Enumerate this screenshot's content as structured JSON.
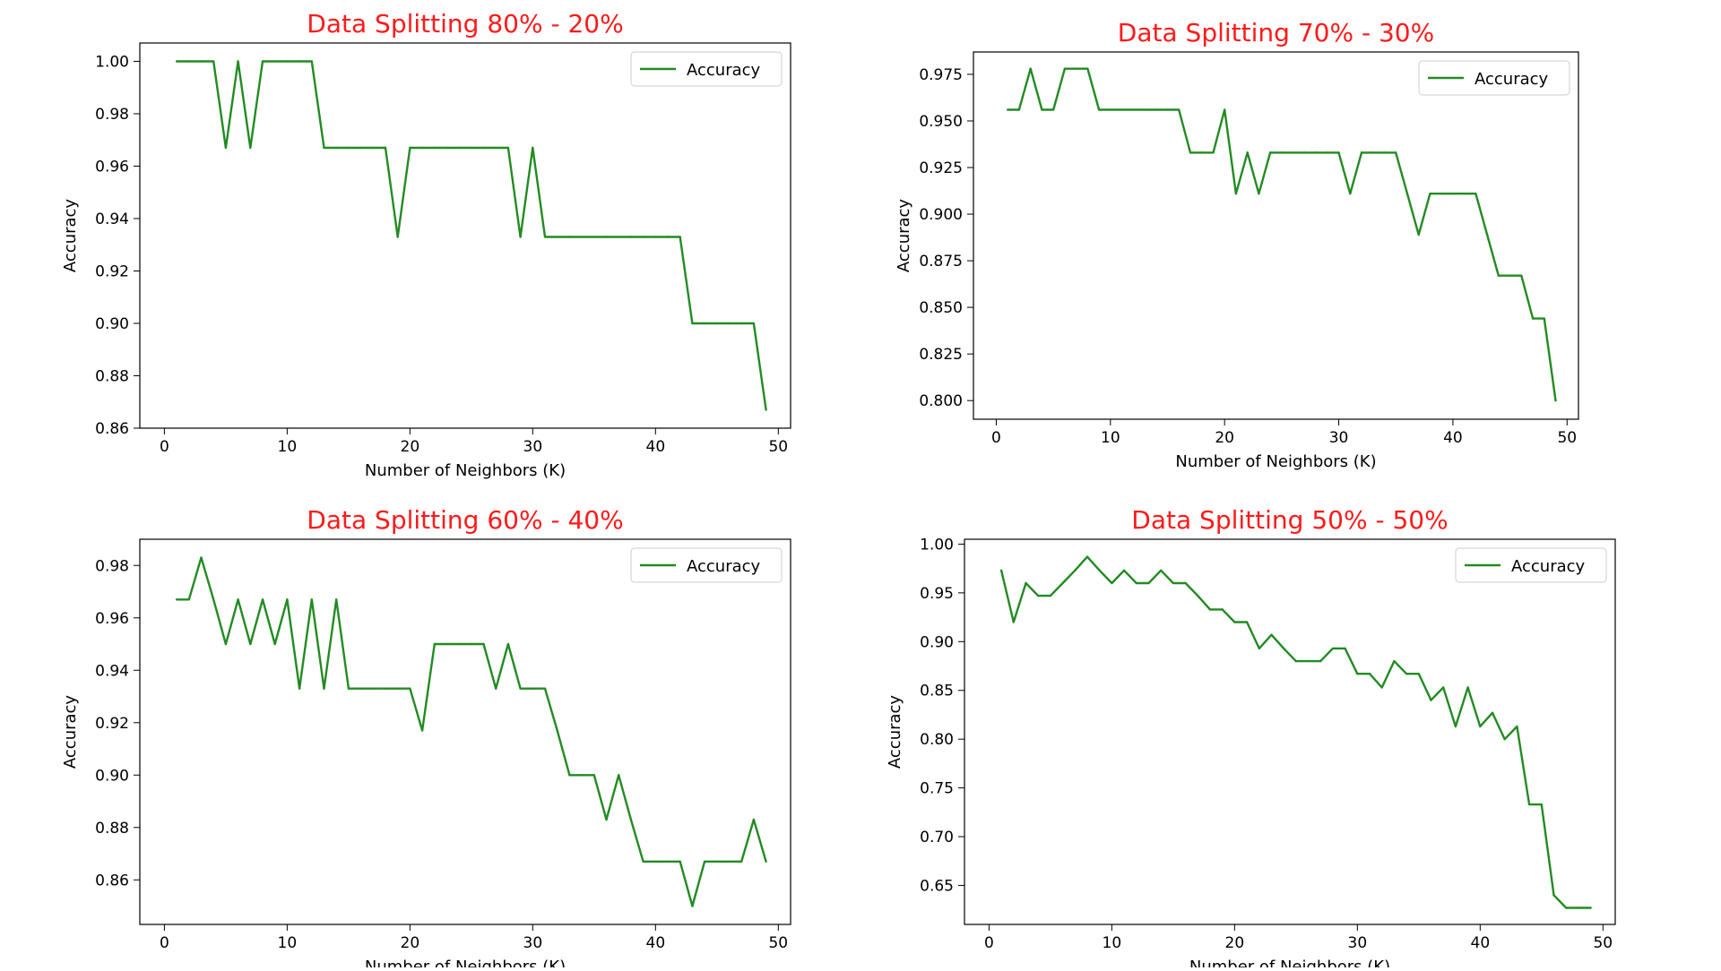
{
  "chart_data": [
    {
      "type": "line",
      "title": "Data Splitting 80% - 20%",
      "xlabel": "Number of Neighbors (K)",
      "ylabel": "Accuracy",
      "legend": "top-right",
      "xlim": [
        -2,
        51
      ],
      "ylim": [
        0.86,
        1.007
      ],
      "xticks": [
        0,
        10,
        20,
        30,
        40,
        50
      ],
      "yticks": [
        0.86,
        0.88,
        0.9,
        0.92,
        0.94,
        0.96,
        0.98,
        1.0
      ],
      "ytick_labels": [
        "0.86",
        "0.88",
        "0.90",
        "0.92",
        "0.94",
        "0.96",
        "0.98",
        "1.00"
      ],
      "series": [
        {
          "name": "Accuracy",
          "color": "#228b22",
          "x": [
            1,
            2,
            3,
            4,
            5,
            6,
            7,
            8,
            9,
            10,
            11,
            12,
            13,
            14,
            15,
            16,
            17,
            18,
            19,
            20,
            21,
            22,
            23,
            24,
            25,
            26,
            27,
            28,
            29,
            30,
            31,
            32,
            33,
            34,
            35,
            36,
            37,
            38,
            39,
            40,
            41,
            42,
            43,
            44,
            45,
            46,
            47,
            48,
            49
          ],
          "y": [
            1.0,
            1.0,
            1.0,
            1.0,
            0.967,
            1.0,
            0.967,
            1.0,
            1.0,
            1.0,
            1.0,
            1.0,
            0.967,
            0.967,
            0.967,
            0.967,
            0.967,
            0.967,
            0.933,
            0.967,
            0.967,
            0.967,
            0.967,
            0.967,
            0.967,
            0.967,
            0.967,
            0.967,
            0.933,
            0.967,
            0.933,
            0.933,
            0.933,
            0.933,
            0.933,
            0.933,
            0.933,
            0.933,
            0.933,
            0.933,
            0.933,
            0.933,
            0.9,
            0.9,
            0.9,
            0.9,
            0.9,
            0.9,
            0.867
          ]
        }
      ]
    },
    {
      "type": "line",
      "title": "Data Splitting 70% - 30%",
      "xlabel": "Number of Neighbors (K)",
      "ylabel": "Accuracy",
      "legend": "top-right",
      "xlim": [
        -2,
        51
      ],
      "ylim": [
        0.79,
        0.987
      ],
      "xticks": [
        0,
        10,
        20,
        30,
        40,
        50
      ],
      "yticks": [
        0.8,
        0.825,
        0.85,
        0.875,
        0.9,
        0.925,
        0.95,
        0.975
      ],
      "ytick_labels": [
        "0.800",
        "0.825",
        "0.850",
        "0.875",
        "0.900",
        "0.925",
        "0.950",
        "0.975"
      ],
      "series": [
        {
          "name": "Accuracy",
          "color": "#228b22",
          "x": [
            1,
            2,
            3,
            4,
            5,
            6,
            7,
            8,
            9,
            10,
            11,
            12,
            13,
            14,
            15,
            16,
            17,
            18,
            19,
            20,
            21,
            22,
            23,
            24,
            25,
            26,
            27,
            28,
            29,
            30,
            31,
            32,
            33,
            34,
            35,
            36,
            37,
            38,
            39,
            40,
            41,
            42,
            43,
            44,
            45,
            46,
            47,
            48,
            49
          ],
          "y": [
            0.956,
            0.956,
            0.978,
            0.956,
            0.956,
            0.978,
            0.978,
            0.978,
            0.956,
            0.956,
            0.956,
            0.956,
            0.956,
            0.956,
            0.956,
            0.956,
            0.933,
            0.933,
            0.933,
            0.956,
            0.911,
            0.933,
            0.911,
            0.933,
            0.933,
            0.933,
            0.933,
            0.933,
            0.933,
            0.933,
            0.911,
            0.933,
            0.933,
            0.933,
            0.933,
            0.911,
            0.889,
            0.911,
            0.911,
            0.911,
            0.911,
            0.911,
            0.889,
            0.867,
            0.867,
            0.867,
            0.844,
            0.844,
            0.8
          ]
        }
      ]
    },
    {
      "type": "line",
      "title": "Data Splitting 60% - 40%",
      "xlabel": "Number of Neighbors (K)",
      "ylabel": "Accuracy",
      "legend": "top-right",
      "xlim": [
        -2,
        51
      ],
      "ylim": [
        0.843,
        0.99
      ],
      "xticks": [
        0,
        10,
        20,
        30,
        40,
        50
      ],
      "yticks": [
        0.86,
        0.88,
        0.9,
        0.92,
        0.94,
        0.96,
        0.98
      ],
      "ytick_labels": [
        "0.86",
        "0.88",
        "0.90",
        "0.92",
        "0.94",
        "0.96",
        "0.98"
      ],
      "series": [
        {
          "name": "Accuracy",
          "color": "#228b22",
          "x": [
            1,
            2,
            3,
            4,
            5,
            6,
            7,
            8,
            9,
            10,
            11,
            12,
            13,
            14,
            15,
            16,
            17,
            18,
            19,
            20,
            21,
            22,
            23,
            24,
            25,
            26,
            27,
            28,
            29,
            30,
            31,
            32,
            33,
            34,
            35,
            36,
            37,
            38,
            39,
            40,
            41,
            42,
            43,
            44,
            45,
            46,
            47,
            48,
            49
          ],
          "y": [
            0.967,
            0.967,
            0.983,
            0.967,
            0.95,
            0.967,
            0.95,
            0.967,
            0.95,
            0.967,
            0.933,
            0.967,
            0.933,
            0.967,
            0.933,
            0.933,
            0.933,
            0.933,
            0.933,
            0.933,
            0.917,
            0.95,
            0.95,
            0.95,
            0.95,
            0.95,
            0.933,
            0.95,
            0.933,
            0.933,
            0.933,
            0.917,
            0.9,
            0.9,
            0.9,
            0.883,
            0.9,
            0.883,
            0.867,
            0.867,
            0.867,
            0.867,
            0.85,
            0.867,
            0.867,
            0.867,
            0.867,
            0.883,
            0.867
          ]
        }
      ]
    },
    {
      "type": "line",
      "title": "Data Splitting 50% - 50%",
      "xlabel": "Number of Neighbors (K)",
      "ylabel": "Accuracy",
      "legend": "top-right",
      "xlim": [
        -2,
        51
      ],
      "ylim": [
        0.61,
        1.005
      ],
      "xticks": [
        0,
        10,
        20,
        30,
        40,
        50
      ],
      "yticks": [
        0.65,
        0.7,
        0.75,
        0.8,
        0.85,
        0.9,
        0.95,
        1.0
      ],
      "ytick_labels": [
        "0.65",
        "0.70",
        "0.75",
        "0.80",
        "0.85",
        "0.90",
        "0.95",
        "1.00"
      ],
      "series": [
        {
          "name": "Accuracy",
          "color": "#228b22",
          "x": [
            1,
            2,
            3,
            4,
            5,
            6,
            7,
            8,
            9,
            10,
            11,
            12,
            13,
            14,
            15,
            16,
            17,
            18,
            19,
            20,
            21,
            22,
            23,
            24,
            25,
            26,
            27,
            28,
            29,
            30,
            31,
            32,
            33,
            34,
            35,
            36,
            37,
            38,
            39,
            40,
            41,
            42,
            43,
            44,
            45,
            46,
            47,
            48,
            49
          ],
          "y": [
            0.973,
            0.92,
            0.96,
            0.947,
            0.947,
            0.96,
            0.973,
            0.987,
            0.973,
            0.96,
            0.973,
            0.96,
            0.96,
            0.973,
            0.96,
            0.96,
            0.947,
            0.933,
            0.933,
            0.92,
            0.92,
            0.893,
            0.907,
            0.893,
            0.88,
            0.88,
            0.88,
            0.893,
            0.893,
            0.867,
            0.867,
            0.853,
            0.88,
            0.867,
            0.867,
            0.84,
            0.853,
            0.813,
            0.853,
            0.813,
            0.827,
            0.8,
            0.813,
            0.733,
            0.733,
            0.64,
            0.627,
            0.627,
            0.627
          ]
        }
      ]
    }
  ]
}
